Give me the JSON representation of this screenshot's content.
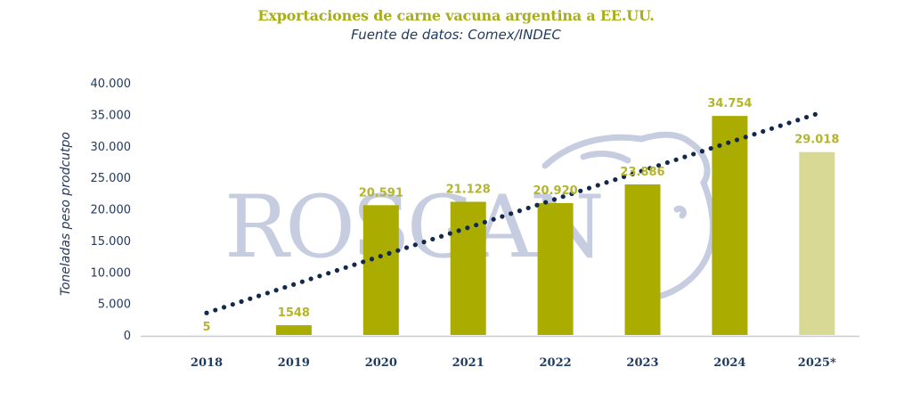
{
  "chart_data": {
    "type": "bar",
    "title": "Exportaciones de carne vacuna argentina a EE.UU.",
    "subtitle": "Fuente de datos: Comex/INDEC",
    "xlabel": "",
    "ylabel": "Toneladas peso prodcutpo",
    "ylim": [
      0,
      40000
    ],
    "yticks": [
      0,
      5000,
      10000,
      15000,
      20000,
      25000,
      30000,
      35000,
      40000
    ],
    "ytick_labels": [
      "0",
      "5.000",
      "10.000",
      "15.000",
      "20.000",
      "25.000",
      "30.000",
      "35.000",
      "40.000"
    ],
    "categories": [
      "2018",
      "2019",
      "2020",
      "2021",
      "2022",
      "2023",
      "2024",
      "2025*"
    ],
    "values": [
      5,
      1548,
      20591,
      21128,
      20920,
      23886,
      34754,
      29018
    ],
    "data_labels": [
      "5",
      "1548",
      "20.591",
      "21.128",
      "20.920",
      "23.886",
      "34.754",
      "29.018"
    ],
    "bar_colors": [
      "#aaad00",
      "#aaad00",
      "#aaad00",
      "#aaad00",
      "#aaad00",
      "#aaad00",
      "#aaad00",
      "#d8d994"
    ],
    "trendline": {
      "style": "dotted",
      "color": "#13284d",
      "start": [
        0,
        3500
      ],
      "end": [
        7,
        35000
      ]
    },
    "grid": false,
    "legend": "none",
    "watermark": "ROSGAN",
    "colors": {
      "title": "#a8ad1c",
      "label": "#b3b52a",
      "axis_text": "#1f3a5f",
      "baseline": "#c8cad6"
    }
  }
}
